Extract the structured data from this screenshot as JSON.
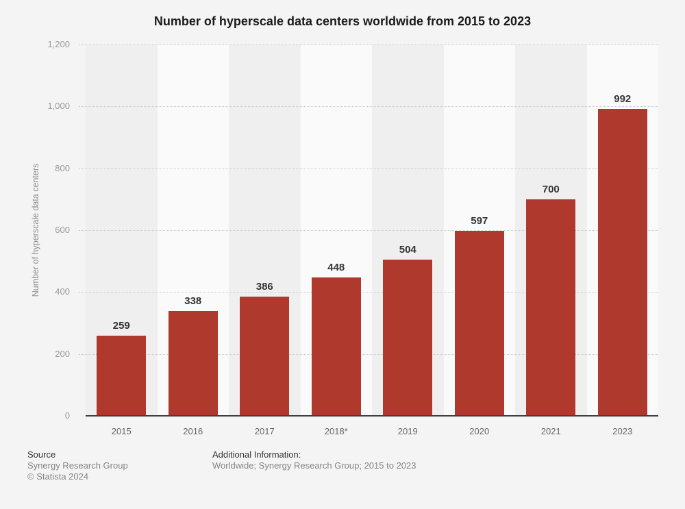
{
  "page": {
    "background": "#f4f4f4"
  },
  "chart_data": {
    "type": "bar",
    "title": "Number of hyperscale data centers worldwide from 2015 to 2023",
    "categories": [
      "2015",
      "2016",
      "2017",
      "2018*",
      "2019",
      "2020",
      "2021",
      "2023"
    ],
    "values": [
      259,
      338,
      386,
      448,
      504,
      597,
      700,
      992
    ],
    "xlabel": "",
    "ylabel": "Number of hyperscale data centers",
    "ylim": [
      0,
      1200
    ],
    "yticks": [
      {
        "value": 0,
        "label": "0"
      },
      {
        "value": 200,
        "label": "200"
      },
      {
        "value": 400,
        "label": "400"
      },
      {
        "value": 600,
        "label": "600"
      },
      {
        "value": 800,
        "label": "800"
      },
      {
        "value": 1000,
        "label": "1,000"
      },
      {
        "value": 1200,
        "label": "1,200"
      }
    ],
    "grid": "horizontal-dotted",
    "legend": "none",
    "value_labels_shown": true,
    "bar_color": "#ae392c",
    "band_colors": [
      "#efefef",
      "#fafafa"
    ],
    "gridline_color": "#c9c9c9",
    "axis_line_color": "#3f3f3f"
  },
  "footer": {
    "source_label": "Source",
    "source_name": "Synergy Research Group",
    "copyright": "© Statista 2024",
    "additional_label": "Additional Information:",
    "additional_text": "Worldwide; Synergy Research Group; 2015 to 2023"
  }
}
